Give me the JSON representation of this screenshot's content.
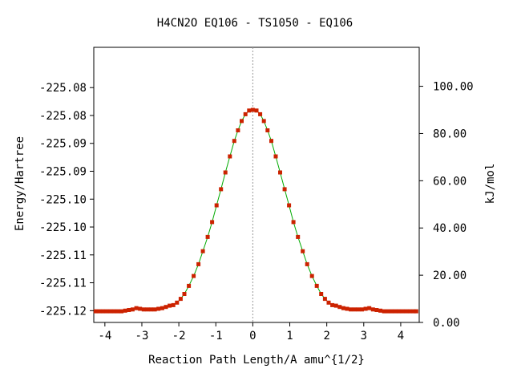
{
  "chart_data": {
    "type": "line",
    "title": "H4CN2O   EQ106 - TS1050 - EQ106",
    "xlabel": "Reaction Path Length/A amu^{1/2}",
    "ylabel": "Energy/Hartree",
    "y2label": "kJ/mol",
    "xlim": [
      -4.3,
      4.5
    ],
    "ylim": [
      -225.1214,
      -225.077
    ],
    "y2lim": [
      0,
      116.5
    ],
    "x_ticks": [
      -4,
      -3,
      -2,
      -1,
      0,
      1,
      2,
      3,
      4
    ],
    "x_tick_labels": [
      "-4",
      "-3",
      "-2",
      "-1",
      "0",
      "1",
      "2",
      "3",
      "4"
    ],
    "y_ticks": [
      -225.1195,
      -225.115,
      -225.1105,
      -225.106,
      -225.1015,
      -225.097,
      -225.0925,
      -225.088,
      -225.0835
    ],
    "y_tick_labels": [
      "-225.12",
      "-225.11",
      "-225.11",
      "-225.10",
      "-225.10",
      "-225.09",
      "-225.09",
      "-225.08",
      "-225.08"
    ],
    "y2_ticks": [
      0,
      20,
      40,
      60,
      80,
      100
    ],
    "y2_tick_labels": [
      "0.00",
      "20.00",
      "40.00",
      "60.00",
      "80.00",
      "100.00"
    ],
    "ts_marker_x": 0,
    "grid": false,
    "colors": {
      "line": "#00aa00",
      "points": "#cc2200",
      "ts_line": "#999999"
    },
    "series": [
      {
        "x": [
          -4.25,
          -4.15,
          -4.05,
          -3.95,
          -3.85,
          -3.75,
          -3.65,
          -3.55,
          -3.45,
          -3.35,
          -3.25,
          -3.15,
          -3.05,
          -2.95,
          -2.85,
          -2.75,
          -2.65,
          -2.55,
          -2.45,
          -2.35,
          -2.25,
          -2.15,
          -2.05,
          -1.95,
          -1.85,
          -1.73,
          -1.6,
          -1.47,
          -1.35,
          -1.22,
          -1.1,
          -0.98,
          -0.86,
          -0.74,
          -0.62,
          -0.5,
          -0.4,
          -0.3,
          -0.2,
          -0.1,
          0,
          0.1,
          0.2,
          0.3,
          0.4,
          0.5,
          0.62,
          0.74,
          0.86,
          0.98,
          1.1,
          1.22,
          1.35,
          1.47,
          1.6,
          1.73,
          1.85,
          1.95,
          2.05,
          2.15,
          2.25,
          2.35,
          2.45,
          2.55,
          2.65,
          2.75,
          2.85,
          2.95,
          3.05,
          3.15,
          3.25,
          3.35,
          3.45,
          3.55,
          3.65,
          3.75,
          3.85,
          3.95,
          4.05,
          4.15,
          4.25,
          4.35,
          4.42
        ],
        "y": [
          -225.1196,
          -225.1196,
          -225.1196,
          -225.1196,
          -225.1196,
          -225.1196,
          -225.1196,
          -225.1196,
          -225.1195,
          -225.1194,
          -225.1193,
          -225.1191,
          -225.1192,
          -225.1193,
          -225.1193,
          -225.1193,
          -225.1193,
          -225.1192,
          -225.1191,
          -225.1189,
          -225.1187,
          -225.1186,
          -225.1182,
          -225.1176,
          -225.1168,
          -225.1155,
          -225.1139,
          -225.112,
          -225.1099,
          -225.1076,
          -225.1052,
          -225.1025,
          -225.0999,
          -225.0972,
          -225.0946,
          -225.0921,
          -225.0904,
          -225.0889,
          -225.0878,
          -225.0872,
          -225.0871,
          -225.0872,
          -225.0878,
          -225.0889,
          -225.0904,
          -225.0921,
          -225.0946,
          -225.0972,
          -225.0999,
          -225.1025,
          -225.1052,
          -225.1076,
          -225.1099,
          -225.112,
          -225.1139,
          -225.1155,
          -225.1168,
          -225.1176,
          -225.1182,
          -225.1186,
          -225.1187,
          -225.1189,
          -225.1191,
          -225.1192,
          -225.1193,
          -225.1193,
          -225.1193,
          -225.1193,
          -225.1192,
          -225.1191,
          -225.1193,
          -225.1194,
          -225.1195,
          -225.1196,
          -225.1196,
          -225.1196,
          -225.1196,
          -225.1196,
          -225.1196,
          -225.1196,
          -225.1196,
          -225.1196,
          -225.1196
        ]
      }
    ]
  }
}
